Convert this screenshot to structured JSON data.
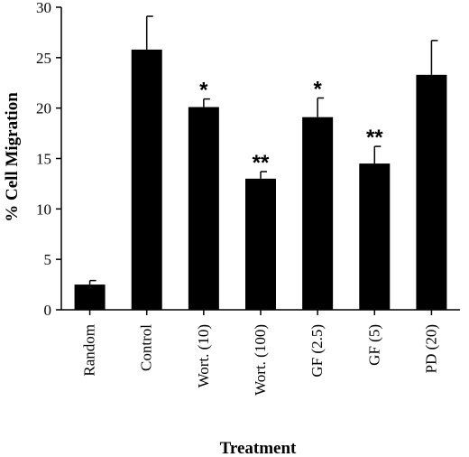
{
  "chart_data": {
    "type": "bar",
    "title": "",
    "xlabel": "Treatment",
    "ylabel": "% Cell Migration",
    "ylim": [
      0,
      30
    ],
    "yticks": [
      0,
      5,
      10,
      15,
      20,
      25,
      30
    ],
    "categories": [
      "Random",
      "Control",
      "Wort. (10)",
      "Wort. (100)",
      "GF (2.5)",
      "GF (5)",
      "PD (20)"
    ],
    "values": [
      2.5,
      25.8,
      20.1,
      13.0,
      19.1,
      14.5,
      23.3
    ],
    "errors": [
      0.4,
      3.3,
      0.8,
      0.7,
      1.9,
      1.7,
      3.4
    ],
    "significance": [
      "",
      "",
      "*",
      "**",
      "*",
      "**",
      ""
    ],
    "bar_color": "#000000",
    "grid": false,
    "legend": "none"
  }
}
